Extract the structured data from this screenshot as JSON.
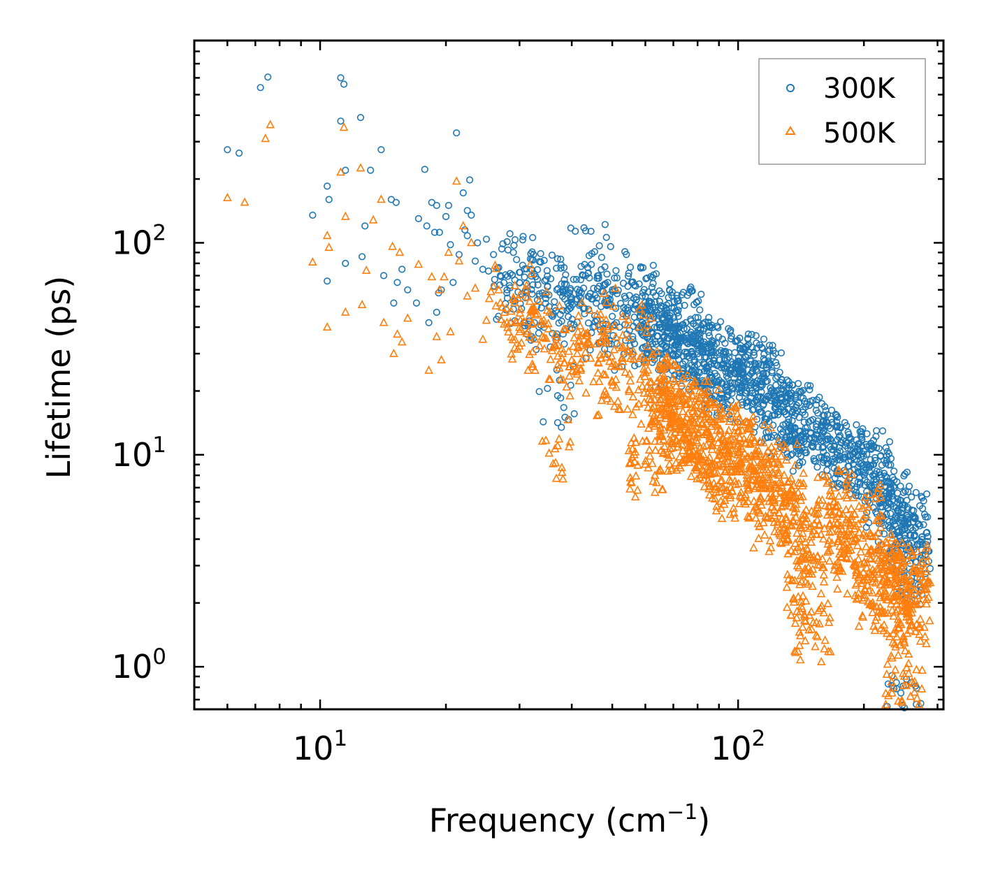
{
  "chart_data": {
    "type": "scatter",
    "xscale": "log",
    "yscale": "log",
    "xlim": [
      5,
      310
    ],
    "ylim": [
      0.63,
      900
    ],
    "xlabel": "Frequency (cm",
    "xlabel_sup": "−1",
    "xlabel_close": ")",
    "ylabel": "Lifetime (ps)",
    "x_major_ticks": [
      {
        "value": 10,
        "base": "10",
        "exp": "1"
      },
      {
        "value": 100,
        "base": "10",
        "exp": "2"
      }
    ],
    "y_major_ticks": [
      {
        "value": 1,
        "base": "10",
        "exp": "0"
      },
      {
        "value": 10,
        "base": "10",
        "exp": "1"
      },
      {
        "value": 100,
        "base": "10",
        "exp": "2"
      }
    ],
    "legend": {
      "position": "top-right"
    },
    "series": [
      {
        "name": "300K",
        "marker": "circle",
        "color": "#1f77b4",
        "points": [
          [
            6.0,
            275
          ],
          [
            6.4,
            265
          ],
          [
            7.2,
            540
          ],
          [
            7.5,
            605
          ],
          [
            9.6,
            135
          ],
          [
            10.4,
            185
          ],
          [
            10.5,
            160
          ],
          [
            10.4,
            66
          ],
          [
            11.2,
            600
          ],
          [
            11.4,
            560
          ],
          [
            11.2,
            375
          ],
          [
            11.5,
            220
          ],
          [
            11.5,
            80
          ],
          [
            12.5,
            390
          ],
          [
            12.6,
            86
          ],
          [
            12.8,
            120
          ],
          [
            13.2,
            220
          ],
          [
            14.0,
            275
          ],
          [
            14.2,
            70
          ],
          [
            14.8,
            160
          ],
          [
            15.0,
            52
          ],
          [
            15.2,
            155
          ],
          [
            15.3,
            65
          ],
          [
            15.7,
            75
          ],
          [
            16.2,
            60
          ],
          [
            17.0,
            52
          ],
          [
            17.2,
            130
          ],
          [
            17.8,
            222
          ],
          [
            18.0,
            120
          ],
          [
            18.2,
            42
          ],
          [
            18.5,
            155
          ],
          [
            18.8,
            112
          ],
          [
            19.0,
            150
          ],
          [
            19.2,
            58
          ],
          [
            19.5,
            60
          ],
          [
            19.3,
            112
          ],
          [
            19.0,
            47
          ],
          [
            20.0,
            133
          ],
          [
            20.3,
            150
          ],
          [
            20.5,
            98
          ],
          [
            20.8,
            65
          ],
          [
            21.2,
            330
          ],
          [
            21.5,
            88
          ],
          [
            22.0,
            172
          ],
          [
            22.2,
            115
          ],
          [
            22.5,
            142
          ],
          [
            22.8,
            198
          ],
          [
            23.0,
            135
          ],
          [
            22.5,
            108
          ],
          [
            23.5,
            82
          ],
          [
            23.8,
            100
          ],
          [
            24.5,
            75
          ],
          [
            25.0,
            104
          ],
          [
            26.0,
            88
          ],
          [
            27.0,
            70
          ],
          [
            28.0,
            60
          ],
          [
            29.0,
            90
          ],
          [
            30.0,
            65
          ],
          [
            31.0,
            55
          ],
          [
            32.0,
            75
          ],
          [
            33.0,
            50
          ],
          [
            34.0,
            58
          ],
          [
            35.0,
            62
          ],
          [
            36.0,
            45
          ],
          [
            37.0,
            19
          ],
          [
            38.0,
            60
          ],
          [
            39.0,
            48
          ],
          [
            40.0,
            55
          ],
          [
            42.0,
            52
          ],
          [
            44.0,
            87
          ],
          [
            45.0,
            40
          ],
          [
            46.0,
            68
          ],
          [
            47.0,
            50
          ],
          [
            48.0,
            77
          ],
          [
            50.0,
            45
          ],
          [
            52.0,
            40
          ],
          [
            54.0,
            45
          ],
          [
            56.0,
            35
          ],
          [
            58.0,
            64
          ],
          [
            60.0,
            56
          ],
          [
            62.0,
            38
          ],
          [
            65.0,
            40
          ],
          [
            67.0,
            32
          ],
          [
            70.0,
            30
          ],
          [
            72.0,
            45
          ],
          [
            75.0,
            42
          ],
          [
            78.0,
            34
          ],
          [
            80.0,
            30
          ],
          [
            84.0,
            26
          ],
          [
            88.0,
            22
          ],
          [
            92.0,
            30
          ],
          [
            96.0,
            25
          ],
          [
            100.0,
            22
          ],
          [
            105.0,
            20
          ],
          [
            110.0,
            26
          ],
          [
            115.0,
            24
          ],
          [
            120.0,
            18
          ],
          [
            125.0,
            16
          ],
          [
            130.0,
            14
          ],
          [
            135.0,
            16
          ],
          [
            140.0,
            15
          ],
          [
            150.0,
            12
          ],
          [
            160.0,
            13
          ],
          [
            170.0,
            11
          ],
          [
            180.0,
            10
          ],
          [
            190.0,
            9.5
          ],
          [
            200.0,
            9
          ],
          [
            210.0,
            8
          ],
          [
            220.0,
            6.5
          ],
          [
            230.0,
            6.8
          ],
          [
            240.0,
            5
          ],
          [
            250.0,
            4.5
          ],
          [
            255.0,
            4.8
          ],
          [
            258.0,
            3.6
          ],
          [
            260.0,
            2.8
          ],
          [
            250.0,
            0.64
          ]
        ]
      },
      {
        "name": "500K",
        "marker": "triangle",
        "color": "#ff7f0e",
        "points": [
          [
            6.0,
            163
          ],
          [
            6.6,
            155
          ],
          [
            7.4,
            310
          ],
          [
            7.6,
            360
          ],
          [
            9.6,
            81
          ],
          [
            10.4,
            108
          ],
          [
            10.5,
            95
          ],
          [
            10.4,
            40
          ],
          [
            11.2,
            215
          ],
          [
            11.4,
            350
          ],
          [
            11.5,
            133
          ],
          [
            11.5,
            47
          ],
          [
            12.5,
            225
          ],
          [
            12.6,
            51
          ],
          [
            12.9,
            74
          ],
          [
            13.4,
            128
          ],
          [
            14.0,
            160
          ],
          [
            14.2,
            42
          ],
          [
            14.9,
            96
          ],
          [
            15.0,
            30
          ],
          [
            15.3,
            37
          ],
          [
            15.5,
            90
          ],
          [
            15.7,
            34
          ],
          [
            16.2,
            44
          ],
          [
            17.2,
            79
          ],
          [
            18.2,
            25
          ],
          [
            18.5,
            69
          ],
          [
            19.0,
            36
          ],
          [
            19.3,
            60
          ],
          [
            19.5,
            28
          ],
          [
            19.8,
            69
          ],
          [
            20.3,
            90
          ],
          [
            20.5,
            38
          ],
          [
            21.2,
            195
          ],
          [
            21.5,
            82
          ],
          [
            22.0,
            120
          ],
          [
            22.5,
            56
          ],
          [
            23.0,
            100
          ],
          [
            23.5,
            61
          ],
          [
            24.5,
            35
          ],
          [
            25.0,
            43
          ],
          [
            26.0,
            62
          ],
          [
            27.0,
            52
          ],
          [
            28.0,
            42
          ],
          [
            29.0,
            55
          ],
          [
            30.0,
            38
          ],
          [
            32.0,
            47
          ],
          [
            34.0,
            36
          ],
          [
            36.0,
            32
          ],
          [
            37.0,
            11
          ],
          [
            38.0,
            30
          ],
          [
            40.0,
            28
          ],
          [
            42.0,
            25
          ],
          [
            44.0,
            34
          ],
          [
            46.0,
            46
          ],
          [
            48.0,
            30
          ],
          [
            50.0,
            22
          ],
          [
            52.0,
            26
          ],
          [
            55.0,
            24
          ],
          [
            58.0,
            40
          ],
          [
            60.0,
            9
          ],
          [
            62.0,
            22
          ],
          [
            65.0,
            15
          ],
          [
            68.0,
            20
          ],
          [
            70.0,
            14
          ],
          [
            72.0,
            18
          ],
          [
            75.0,
            12
          ],
          [
            78.0,
            16
          ],
          [
            80.0,
            10
          ],
          [
            84.0,
            14
          ],
          [
            88.0,
            9
          ],
          [
            92.0,
            12
          ],
          [
            96.0,
            7
          ],
          [
            100.0,
            11
          ],
          [
            105.0,
            8
          ],
          [
            110.0,
            10
          ],
          [
            115.0,
            7
          ],
          [
            120.0,
            5
          ],
          [
            125.0,
            8
          ],
          [
            130.0,
            6
          ],
          [
            140.0,
            4
          ],
          [
            145.0,
            2.5
          ],
          [
            150.0,
            1.5
          ],
          [
            160.0,
            4
          ],
          [
            170.0,
            6
          ],
          [
            180.0,
            4
          ],
          [
            190.0,
            3
          ],
          [
            200.0,
            5
          ],
          [
            210.0,
            2
          ],
          [
            220.0,
            3
          ],
          [
            230.0,
            2.5
          ],
          [
            240.0,
            2.8
          ],
          [
            250.0,
            0.9
          ],
          [
            255.0,
            1.8
          ],
          [
            258.0,
            2.6
          ],
          [
            260.0,
            2.2
          ]
        ]
      }
    ]
  }
}
